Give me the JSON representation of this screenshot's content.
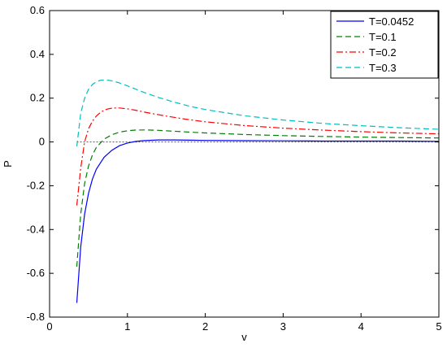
{
  "chart_data": {
    "type": "line",
    "title": "",
    "xlabel": "v",
    "ylabel": "P",
    "xlim": [
      0,
      5
    ],
    "ylim": [
      -0.8,
      0.6
    ],
    "grid": false,
    "legend_position": "top-right",
    "xticks": [
      0,
      1,
      2,
      3,
      4,
      5
    ],
    "yticks": [
      -0.8,
      -0.6,
      -0.4,
      -0.2,
      0,
      0.2,
      0.4,
      0.6
    ],
    "xtick_labels": [
      "0",
      "1",
      "2",
      "3",
      "4",
      "5"
    ],
    "ytick_labels": [
      "-0.8",
      "-0.6",
      "-0.4",
      "-0.2",
      "0",
      "0.2",
      "0.4",
      "0.6"
    ],
    "reference_line": {
      "y": 0,
      "color": "#555555"
    },
    "series": [
      {
        "name": "T=0.0452",
        "color": "#0000ff",
        "dash": "solid",
        "x": [
          0.35,
          0.4,
          0.45,
          0.5,
          0.55,
          0.6,
          0.7,
          0.8,
          0.9,
          1.0,
          1.1,
          1.2,
          1.4,
          1.6,
          1.8,
          2.0,
          2.5,
          3.0,
          3.5,
          4.0,
          4.5,
          5.0
        ],
        "y": [
          -0.735,
          -0.48,
          -0.33,
          -0.235,
          -0.17,
          -0.125,
          -0.07,
          -0.038,
          -0.017,
          -0.005,
          0.002,
          0.006,
          0.009,
          0.009,
          0.008,
          0.007,
          0.006,
          0.005,
          0.004,
          0.004,
          0.004,
          0.003
        ]
      },
      {
        "name": "T=0.1",
        "color": "#008000",
        "dash": "dashed",
        "x": [
          0.35,
          0.4,
          0.45,
          0.5,
          0.55,
          0.6,
          0.7,
          0.8,
          0.9,
          1.0,
          1.1,
          1.25,
          1.4,
          1.6,
          1.8,
          2.0,
          2.5,
          3.0,
          3.5,
          4.0,
          4.5,
          5.0
        ],
        "y": [
          -0.57,
          -0.33,
          -0.19,
          -0.11,
          -0.06,
          -0.025,
          0.013,
          0.033,
          0.045,
          0.051,
          0.054,
          0.055,
          0.053,
          0.049,
          0.045,
          0.041,
          0.034,
          0.029,
          0.025,
          0.022,
          0.02,
          0.018
        ]
      },
      {
        "name": "T=0.2",
        "color": "#ff0000",
        "dash": "dashdot",
        "x": [
          0.35,
          0.4,
          0.45,
          0.5,
          0.55,
          0.6,
          0.65,
          0.7,
          0.75,
          0.8,
          0.85,
          0.9,
          1.0,
          1.1,
          1.25,
          1.5,
          1.75,
          2.0,
          2.5,
          3.0,
          3.5,
          4.0,
          4.5,
          5.0
        ],
        "y": [
          -0.29,
          -0.12,
          0.0,
          0.06,
          0.095,
          0.118,
          0.134,
          0.145,
          0.151,
          0.154,
          0.155,
          0.155,
          0.151,
          0.145,
          0.134,
          0.118,
          0.104,
          0.092,
          0.075,
          0.063,
          0.054,
          0.047,
          0.041,
          0.037
        ]
      },
      {
        "name": "T=0.3",
        "color": "#00bfbf",
        "dash": "dashed",
        "x": [
          0.35,
          0.4,
          0.45,
          0.5,
          0.55,
          0.6,
          0.65,
          0.7,
          0.75,
          0.8,
          0.9,
          1.0,
          1.2,
          1.4,
          1.6,
          1.8,
          2.0,
          2.5,
          3.0,
          3.5,
          4.0,
          4.5,
          5.0
        ],
        "y": [
          -0.02,
          0.13,
          0.2,
          0.24,
          0.262,
          0.275,
          0.281,
          0.283,
          0.282,
          0.279,
          0.269,
          0.256,
          0.228,
          0.203,
          0.182,
          0.163,
          0.148,
          0.12,
          0.1,
          0.085,
          0.074,
          0.065,
          0.058
        ]
      }
    ]
  }
}
